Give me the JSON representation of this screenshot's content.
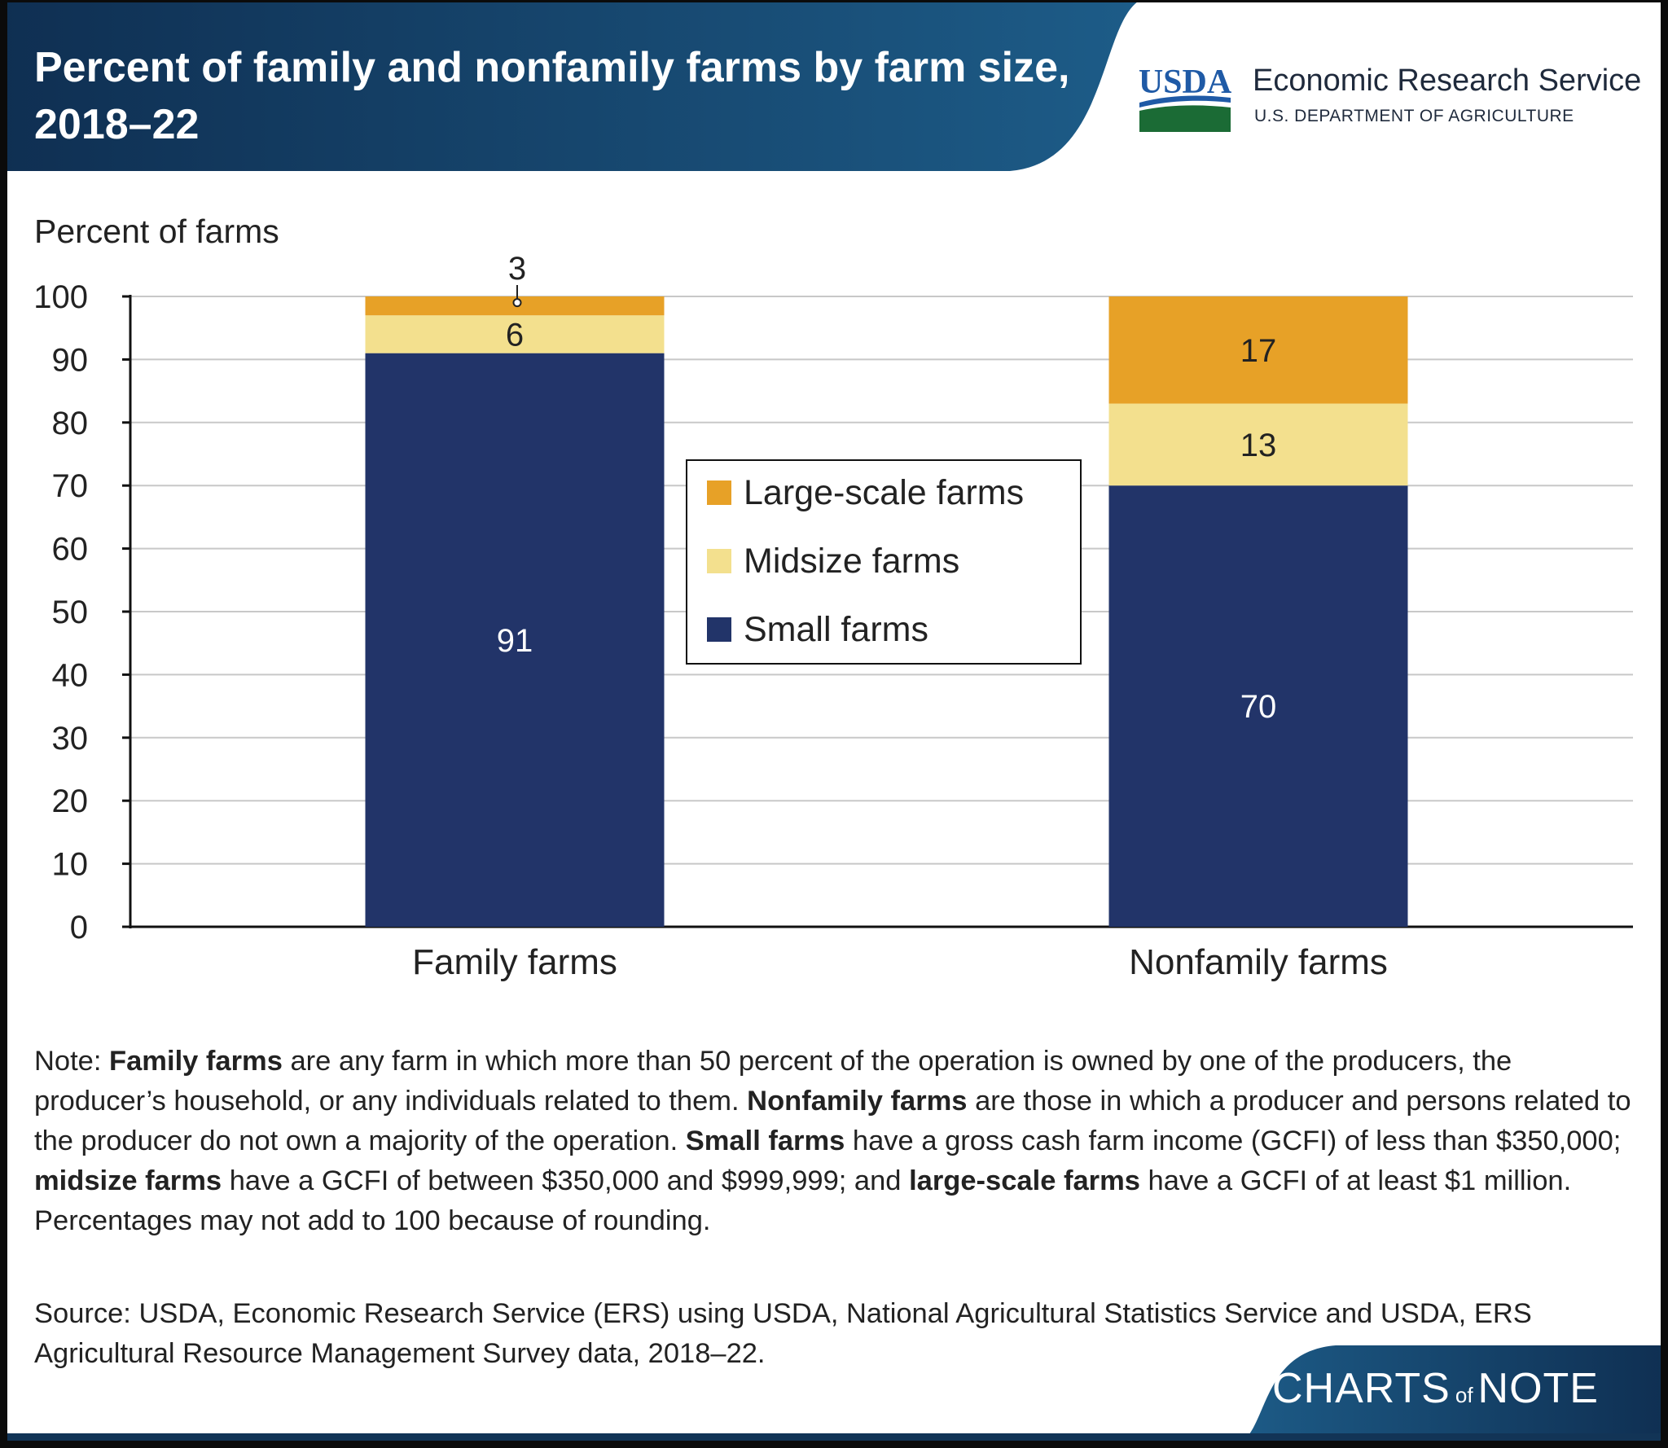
{
  "header": {
    "title": "Percent of family and nonfamily farms by farm size, 2018–22",
    "logo_text": "USDA",
    "agency": "Economic Research Service",
    "department": "U.S. DEPARTMENT OF AGRICULTURE"
  },
  "chart_data": {
    "type": "bar",
    "stacked": true,
    "ylabel": "Percent of farms",
    "xlabel": "",
    "ylim": [
      0,
      100
    ],
    "yticks": [
      "0",
      "10",
      "20",
      "30",
      "40",
      "50",
      "60",
      "70",
      "80",
      "90",
      "100"
    ],
    "grid": true,
    "categories": [
      "Family farms",
      "Nonfamily farms"
    ],
    "series": [
      {
        "name": "Small farms",
        "values": [
          91,
          70
        ],
        "labels": [
          "91",
          "70"
        ],
        "color": "#223469"
      },
      {
        "name": "Midsize farms",
        "values": [
          6,
          13
        ],
        "labels": [
          "6",
          "13"
        ],
        "color": "#f3e08e"
      },
      {
        "name": "Large-scale farms",
        "values": [
          3,
          17
        ],
        "labels": [
          "3",
          "17"
        ],
        "color": "#e7a127"
      }
    ],
    "legend": {
      "placement": "center",
      "entries": [
        "Large-scale farms",
        "Midsize farms",
        "Small farms"
      ]
    }
  },
  "note": {
    "prefix": "Note: ",
    "family_term": "Family farms",
    "family_def": " are any farm in which more than 50 percent of the operation is owned by one of the producers, the producer’s household, or any individuals related to them. ",
    "nonfamily_term": "Nonfamily farms",
    "nonfamily_def": " are those in which a producer and persons related to the producer do not own a majority of the operation. ",
    "small_term": "Small farms",
    "small_def": " have a gross cash farm income (GCFI) of less than $350,000; ",
    "midsize_term": "midsize farms",
    "midsize_def": " have a GCFI of between $350,000 and $999,999; and ",
    "large_term": "large-scale farms",
    "large_def": " have a GCFI of at least $1 million. Percentages may not add to 100 because of rounding."
  },
  "source": "Source: USDA, Economic Research Service (ERS) using USDA, National Agricultural Statistics Service and USDA, ERS Agricultural Resource Management Survey data, 2018–22.",
  "footer": {
    "brand_part1": "CHARTS",
    "brand_of": "of",
    "brand_part2": "NOTE"
  },
  "colors": {
    "header_dark": "#123456",
    "header_light": "#1c5a86",
    "small": "#223469",
    "midsize": "#f3e08e",
    "large": "#e7a127",
    "usda_blue": "#1f5aa6",
    "usda_green": "#1b6b35"
  }
}
